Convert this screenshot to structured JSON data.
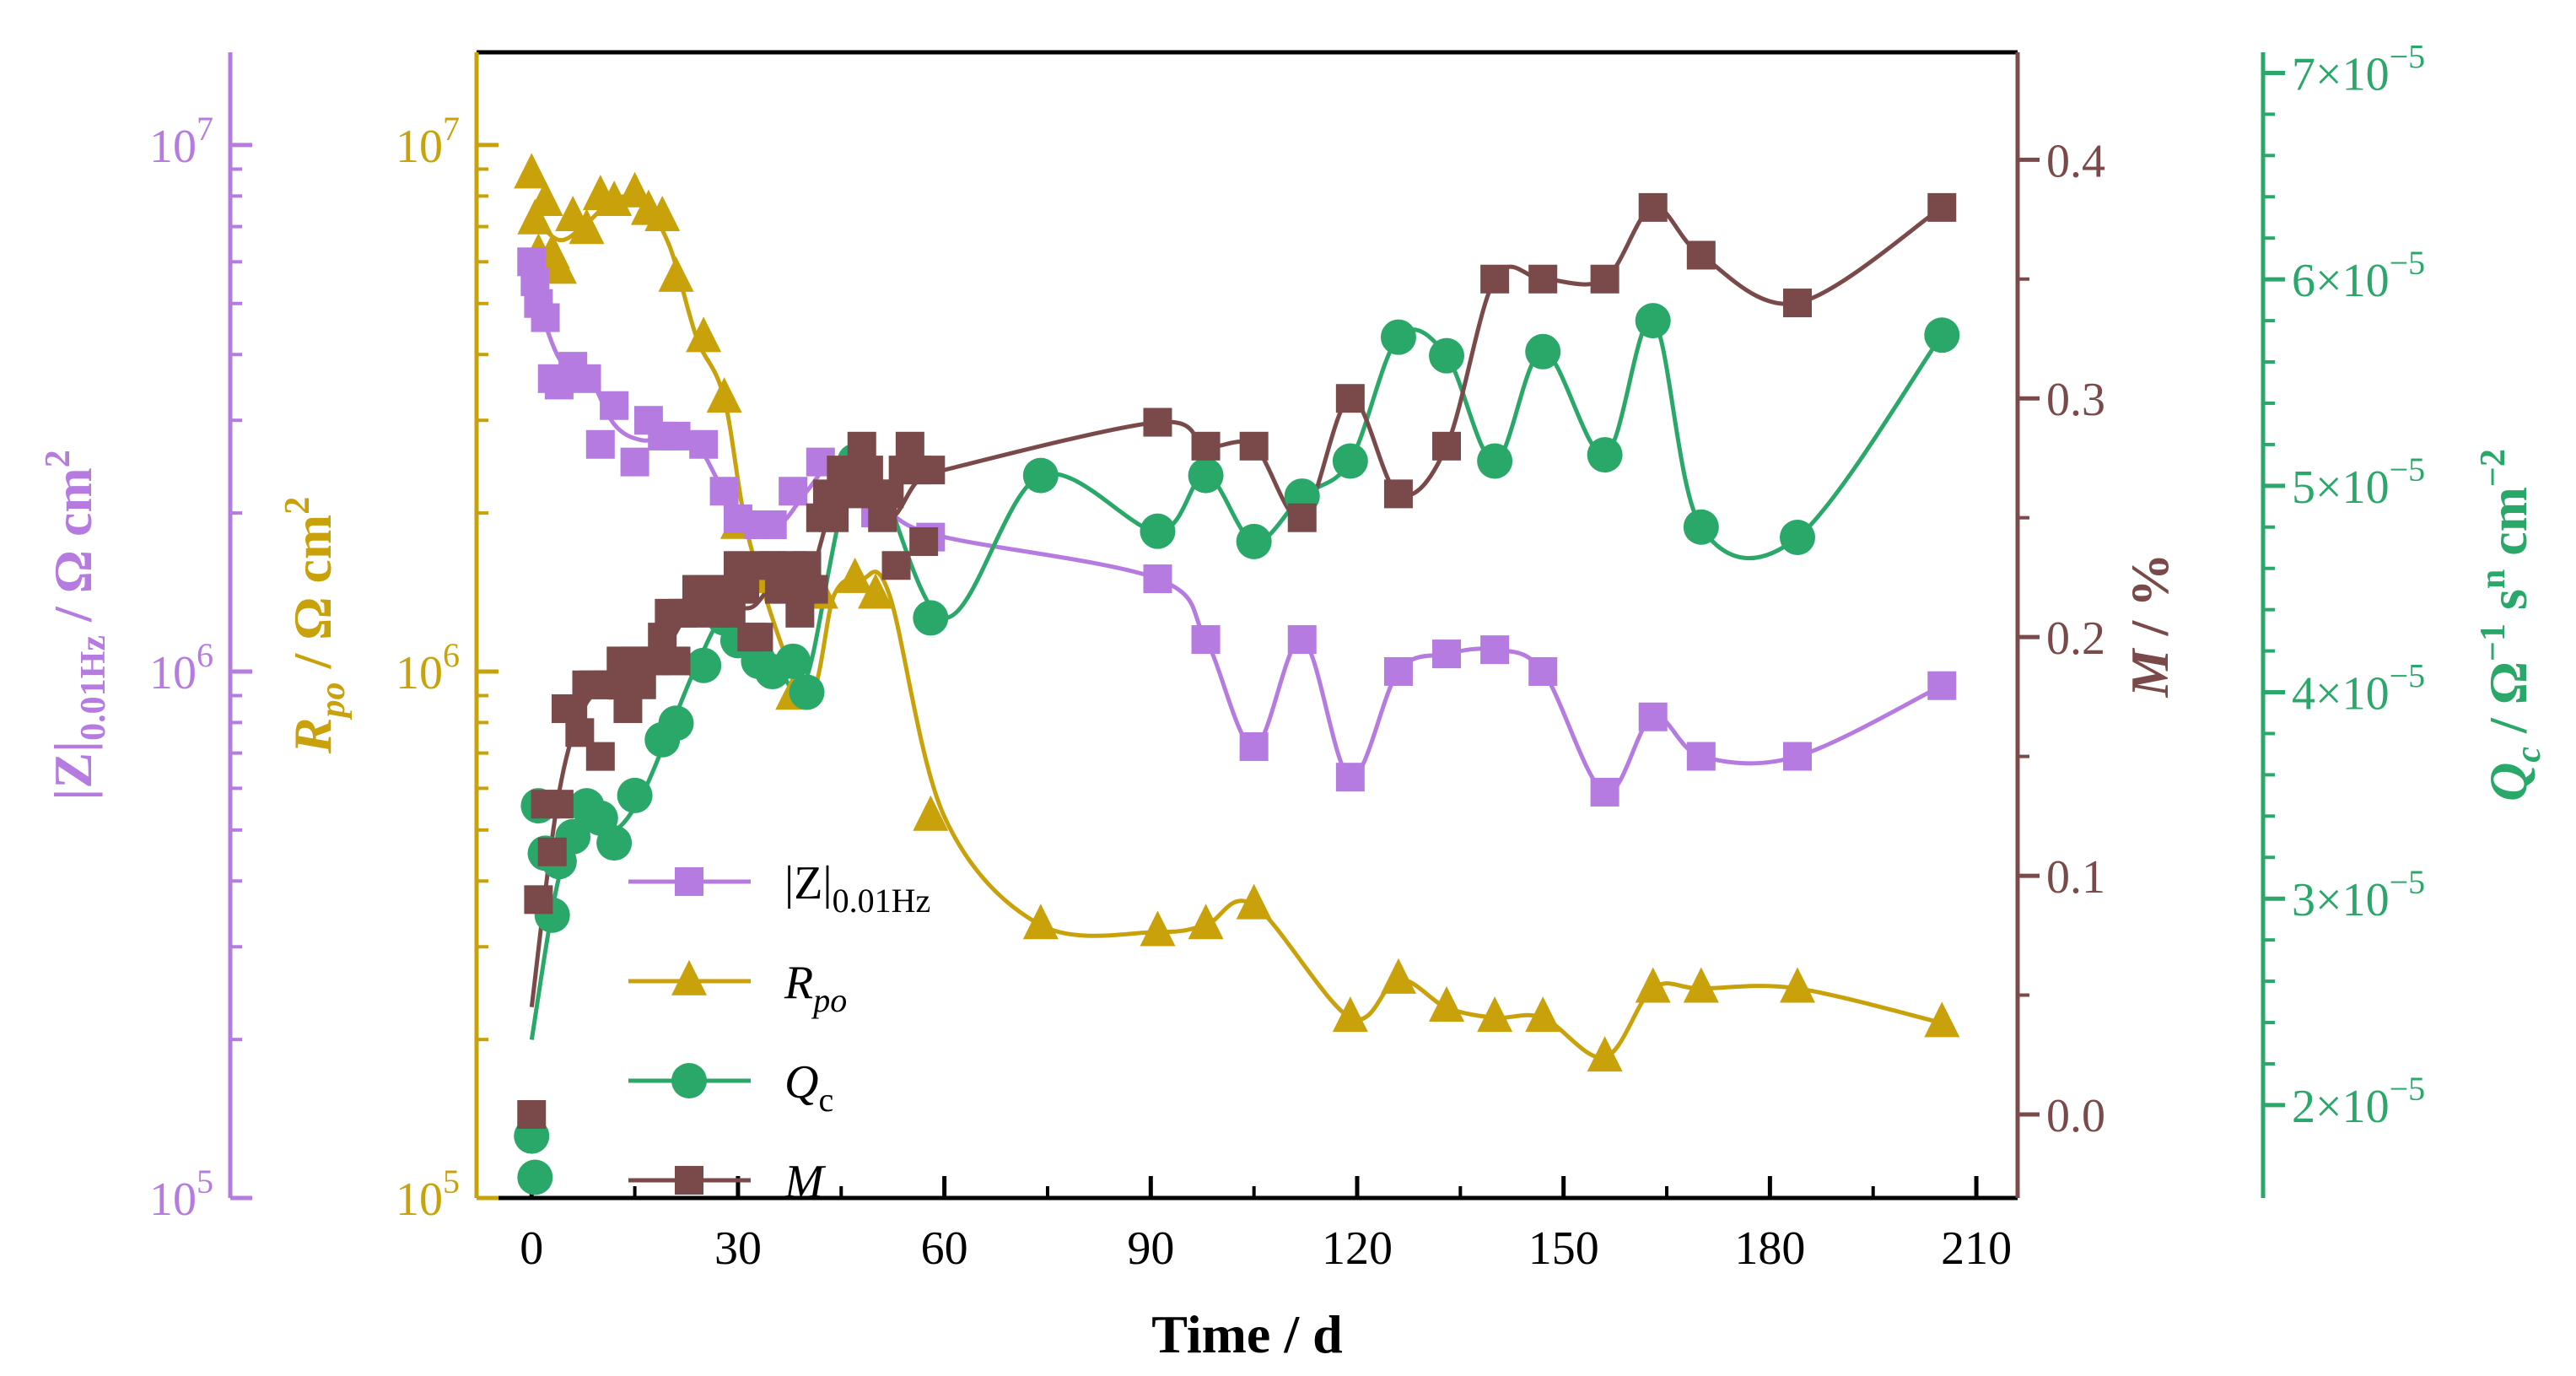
{
  "chart_data": {
    "type": "scatter",
    "colors": {
      "Z": "#b57be0",
      "Rpo": "#c9a10a",
      "Qc": "#2aa86a",
      "M": "#7a4a4a",
      "axis": "#000000"
    },
    "x_axis": {
      "label": "Time / d",
      "range": [
        -8,
        216
      ],
      "ticks": [
        0,
        30,
        60,
        90,
        120,
        150,
        180,
        210
      ],
      "tick_labels": [
        "0",
        "30",
        "60",
        "90",
        "120",
        "150",
        "180",
        "210"
      ]
    },
    "y_axes": {
      "Z": {
        "label_main": "|Z|",
        "label_sub": "0.01Hz",
        "label_unit": " / Ω cm",
        "label_sup": "2",
        "scale": "log",
        "range": [
          100000,
          15000000
        ],
        "tick_labels": [
          {
            "value": 100000,
            "base": "10",
            "exp": "5"
          },
          {
            "value": 1000000,
            "base": "10",
            "exp": "6"
          },
          {
            "value": 10000000,
            "base": "10",
            "exp": "7"
          }
        ]
      },
      "Rpo": {
        "label_main": "R",
        "label_sub": "po",
        "label_unit": " / Ω cm",
        "label_sup": "2",
        "scale": "log",
        "range": [
          100000,
          15000000
        ],
        "tick_labels": [
          {
            "value": 100000,
            "base": "10",
            "exp": "5"
          },
          {
            "value": 1000000,
            "base": "10",
            "exp": "6"
          },
          {
            "value": 10000000,
            "base": "10",
            "exp": "7"
          }
        ]
      },
      "M": {
        "label_main": "M",
        "label_unit": " / %",
        "scale": "linear",
        "range": [
          -0.035,
          0.445
        ],
        "ticks": [
          0.0,
          0.1,
          0.2,
          0.3,
          0.4
        ],
        "tick_labels": [
          "0.0",
          "0.1",
          "0.2",
          "0.3",
          "0.4"
        ]
      },
      "Qc": {
        "label_main": "Q",
        "label_sub": "c",
        "label_unit": " / Ω",
        "label_sup1": "−1",
        "label_mid": " s",
        "label_sup2": "n",
        "label_end": " cm",
        "label_sup3": "−2",
        "scale": "linear",
        "range": [
          1.55e-05,
          7.1e-05
        ],
        "tick_labels": [
          {
            "value": 2e-05,
            "mant": "2×10",
            "exp": "−5"
          },
          {
            "value": 3e-05,
            "mant": "3×10",
            "exp": "−5"
          },
          {
            "value": 4e-05,
            "mant": "4×10",
            "exp": "−5"
          },
          {
            "value": 5e-05,
            "mant": "5×10",
            "exp": "−5"
          },
          {
            "value": 6e-05,
            "mant": "6×10",
            "exp": "−5"
          },
          {
            "value": 7e-05,
            "mant": "7×10",
            "exp": "−5"
          }
        ]
      }
    },
    "legend": {
      "position": "bottom-left",
      "entries": [
        {
          "series": "Z",
          "main": "|Z|",
          "sub": "0.01Hz",
          "marker": "square"
        },
        {
          "series": "Rpo",
          "main": "R",
          "sub": "po",
          "marker": "triangle"
        },
        {
          "series": "Qc",
          "main": "Q",
          "sub": "c",
          "marker": "circle"
        },
        {
          "series": "M",
          "main": "M",
          "sub": "",
          "marker": "square"
        }
      ]
    },
    "series": [
      {
        "name": "|Z|0.01Hz",
        "key": "Z",
        "axis": "Z",
        "marker": "square",
        "x": [
          0,
          0.5,
          1,
          2,
          3,
          4,
          6,
          8,
          10,
          12,
          15,
          17,
          19,
          21,
          25,
          28,
          30,
          33,
          35,
          38,
          42,
          47,
          50,
          58,
          91,
          98,
          105,
          112,
          119,
          126,
          133,
          140,
          147,
          156,
          163,
          170,
          184,
          205
        ],
        "y": [
          6000000,
          5500000,
          5000000,
          4700000,
          3600000,
          3500000,
          3800000,
          3600000,
          2700000,
          3200000,
          2500000,
          3000000,
          2800000,
          2800000,
          2700000,
          2200000,
          1950000,
          1900000,
          1900000,
          2200000,
          2500000,
          2200000,
          2000000,
          1800000,
          1500000,
          1150000,
          720000,
          1150000,
          630000,
          1000000,
          1080000,
          1100000,
          1000000,
          590000,
          820000,
          690000,
          690000,
          940000
        ]
      },
      {
        "name": "Rpo",
        "key": "Rpo",
        "axis": "Rpo",
        "marker": "triangle",
        "x": [
          0,
          0.5,
          1,
          2,
          3,
          4,
          6,
          8,
          10,
          12,
          15,
          17,
          19,
          21,
          25,
          28,
          30,
          33,
          38,
          42,
          47,
          50,
          58,
          74,
          91,
          98,
          105,
          119,
          126,
          133,
          140,
          147,
          156,
          163,
          170,
          184,
          205
        ],
        "y": [
          8800000,
          7200000,
          6200000,
          7800000,
          6200000,
          5800000,
          7300000,
          6900000,
          8000000,
          7800000,
          8100000,
          7500000,
          7300000,
          5600000,
          4300000,
          3300000,
          1900000,
          1500000,
          900000,
          1400000,
          1500000,
          1400000,
          530000,
          330000,
          320000,
          330000,
          360000,
          220000,
          260000,
          230000,
          220000,
          220000,
          185000,
          250000,
          250000,
          250000,
          215000
        ]
      },
      {
        "name": "Qc",
        "key": "Qc",
        "axis": "Qc",
        "marker": "circle",
        "x": [
          0,
          0.5,
          1,
          2,
          3,
          4,
          6,
          8,
          10,
          12,
          15,
          19,
          21,
          25,
          28,
          30,
          33,
          35,
          38,
          40,
          47,
          58,
          74,
          91,
          98,
          105,
          112,
          119,
          126,
          133,
          140,
          147,
          156,
          163,
          170,
          184,
          205
        ],
        "y": [
          1.85e-05,
          1.65e-05,
          3.45e-05,
          3.22e-05,
          2.92e-05,
          3.18e-05,
          3.3e-05,
          3.45e-05,
          3.39e-05,
          3.27e-05,
          3.5e-05,
          3.77e-05,
          3.85e-05,
          4.13e-05,
          4.36e-05,
          4.25e-05,
          4.15e-05,
          4.1e-05,
          4.15e-05,
          4e-05,
          5.12e-05,
          4.36e-05,
          5.05e-05,
          4.78e-05,
          5.05e-05,
          4.73e-05,
          4.95e-05,
          5.12e-05,
          5.72e-05,
          5.63e-05,
          5.12e-05,
          5.65e-05,
          5.15e-05,
          5.8e-05,
          4.8e-05,
          4.75e-05,
          5.73e-05
        ]
      },
      {
        "name": "M",
        "key": "M",
        "axis": "M",
        "marker": "square",
        "x": [
          0,
          1,
          2,
          3,
          4,
          5,
          6,
          7,
          8,
          9,
          10,
          11,
          12,
          13,
          14,
          15,
          16,
          17,
          18,
          19,
          20,
          21,
          22,
          23,
          24,
          25,
          26,
          27,
          28,
          29,
          30,
          31,
          32,
          33,
          34,
          35,
          36,
          37,
          38,
          39,
          40,
          41,
          42,
          43,
          44,
          45,
          46,
          47,
          48,
          49,
          50,
          51,
          52,
          53,
          54,
          55,
          56,
          57,
          58,
          91,
          98,
          105,
          112,
          119,
          126,
          133,
          140,
          147,
          156,
          163,
          170,
          184,
          205
        ],
        "y": [
          0.0,
          0.09,
          0.13,
          0.11,
          0.13,
          0.17,
          0.17,
          0.16,
          0.18,
          0.18,
          0.15,
          0.18,
          0.18,
          0.19,
          0.17,
          0.19,
          0.18,
          0.19,
          0.19,
          0.2,
          0.21,
          0.19,
          0.21,
          0.21,
          0.22,
          0.22,
          0.22,
          0.21,
          0.22,
          0.21,
          0.23,
          0.22,
          0.2,
          0.2,
          0.23,
          0.23,
          0.22,
          0.22,
          0.23,
          0.21,
          0.23,
          0.22,
          0.25,
          0.26,
          0.25,
          0.27,
          0.26,
          0.27,
          0.28,
          0.27,
          0.26,
          0.25,
          0.26,
          0.23,
          0.27,
          0.28,
          0.27,
          0.24,
          0.27,
          0.29,
          0.28,
          0.28,
          0.25,
          0.3,
          0.26,
          0.28,
          0.35,
          0.35,
          0.35,
          0.38,
          0.36,
          0.34,
          0.38
        ]
      }
    ]
  }
}
